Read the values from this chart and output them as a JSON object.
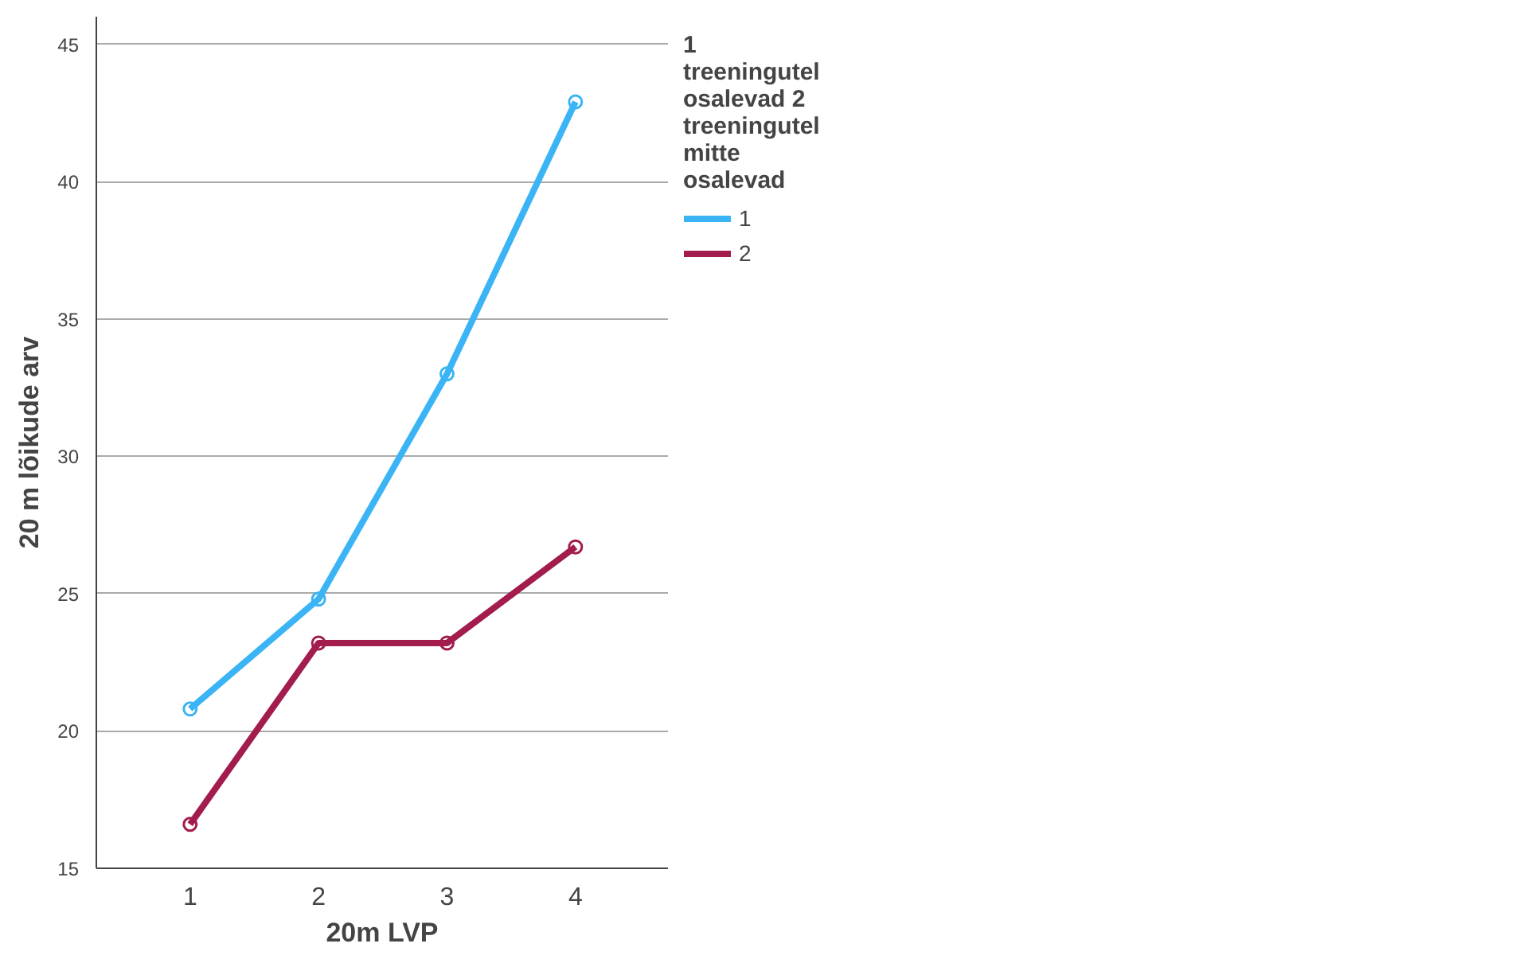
{
  "chart_data": {
    "type": "line",
    "xlabel": "20m LVP",
    "ylabel": "20 m lõikude arv",
    "legend_title": "1 treeningutel osalevad 2 treeningutel mitte osalevad",
    "categories": [
      "1",
      "2",
      "3",
      "4"
    ],
    "series": [
      {
        "name": "1",
        "color": "#3bb4f5",
        "values": [
          20.8,
          24.8,
          33.0,
          42.9
        ]
      },
      {
        "name": "2",
        "color": "#a21c4e",
        "values": [
          16.6,
          23.2,
          23.2,
          26.7
        ]
      }
    ],
    "ylim": [
      15,
      46
    ],
    "yticks": [
      15,
      20,
      25,
      30,
      35,
      40,
      45
    ],
    "grid": "y",
    "legend": "top right",
    "marker": "circle",
    "line_style": "solid"
  }
}
